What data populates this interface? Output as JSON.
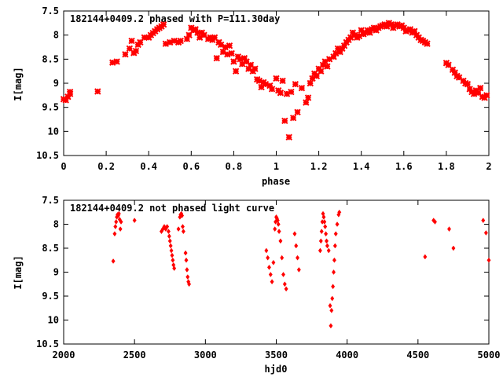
{
  "chart_data": [
    {
      "type": "scatter",
      "title": "182144+0409.2 phased with P=111.30day",
      "xlabel": "phase",
      "ylabel": "I[mag]",
      "xlim": [
        0,
        2
      ],
      "ylim": [
        10.5,
        7.5
      ],
      "y_inverted": true,
      "grid": false,
      "marker": "cross",
      "color": "#ff0000",
      "x_ticks": [
        "0",
        "0.2",
        "0.4",
        "0.6",
        "0.8",
        "1",
        "1.2",
        "1.4",
        "1.6",
        "1.8",
        "2"
      ],
      "y_ticks": [
        "7.5",
        "8",
        "8.5",
        "9",
        "9.5",
        "10",
        "10.5"
      ],
      "points": [
        [
          0.0,
          9.33
        ],
        [
          0.01,
          9.35
        ],
        [
          0.02,
          9.28
        ],
        [
          0.03,
          9.22
        ],
        [
          0.03,
          9.18
        ],
        [
          0.16,
          9.17
        ],
        [
          0.23,
          8.57
        ],
        [
          0.25,
          8.55
        ],
        [
          0.29,
          8.4
        ],
        [
          0.31,
          8.28
        ],
        [
          0.32,
          8.12
        ],
        [
          0.33,
          8.37
        ],
        [
          0.34,
          8.33
        ],
        [
          0.35,
          8.2
        ],
        [
          0.36,
          8.15
        ],
        [
          0.38,
          8.05
        ],
        [
          0.4,
          8.05
        ],
        [
          0.41,
          8.0
        ],
        [
          0.42,
          7.96
        ],
        [
          0.43,
          7.92
        ],
        [
          0.44,
          7.88
        ],
        [
          0.45,
          7.85
        ],
        [
          0.46,
          7.82
        ],
        [
          0.47,
          7.78
        ],
        [
          0.48,
          8.18
        ],
        [
          0.5,
          8.15
        ],
        [
          0.52,
          8.12
        ],
        [
          0.54,
          8.15
        ],
        [
          0.55,
          8.12
        ],
        [
          0.58,
          8.08
        ],
        [
          0.59,
          8.0
        ],
        [
          0.6,
          7.85
        ],
        [
          0.61,
          7.9
        ],
        [
          0.62,
          7.88
        ],
        [
          0.63,
          7.95
        ],
        [
          0.64,
          8.05
        ],
        [
          0.65,
          7.95
        ],
        [
          0.66,
          8.0
        ],
        [
          0.68,
          8.08
        ],
        [
          0.69,
          8.05
        ],
        [
          0.7,
          8.1
        ],
        [
          0.71,
          8.05
        ],
        [
          0.72,
          8.48
        ],
        [
          0.73,
          8.15
        ],
        [
          0.74,
          8.2
        ],
        [
          0.75,
          8.35
        ],
        [
          0.76,
          8.25
        ],
        [
          0.77,
          8.4
        ],
        [
          0.78,
          8.22
        ],
        [
          0.79,
          8.38
        ],
        [
          0.8,
          8.55
        ],
        [
          0.81,
          8.75
        ],
        [
          0.82,
          8.45
        ],
        [
          0.83,
          8.5
        ],
        [
          0.84,
          8.6
        ],
        [
          0.85,
          8.48
        ],
        [
          0.86,
          8.55
        ],
        [
          0.87,
          8.7
        ],
        [
          0.88,
          8.62
        ],
        [
          0.89,
          8.75
        ],
        [
          0.9,
          8.7
        ],
        [
          0.91,
          8.92
        ],
        [
          0.92,
          8.95
        ],
        [
          0.93,
          9.08
        ],
        [
          0.94,
          8.98
        ],
        [
          0.95,
          9.02
        ],
        [
          0.97,
          9.05
        ],
        [
          0.98,
          9.12
        ],
        [
          1.0,
          8.9
        ],
        [
          1.01,
          9.15
        ],
        [
          1.02,
          9.2
        ],
        [
          1.03,
          8.95
        ],
        [
          1.04,
          9.78
        ],
        [
          1.05,
          9.22
        ],
        [
          1.06,
          10.12
        ],
        [
          1.07,
          9.18
        ],
        [
          1.08,
          9.72
        ],
        [
          1.09,
          9.02
        ],
        [
          1.1,
          9.6
        ],
        [
          1.12,
          9.1
        ],
        [
          1.14,
          9.4
        ],
        [
          1.15,
          9.3
        ],
        [
          1.16,
          9.0
        ],
        [
          1.17,
          8.9
        ],
        [
          1.18,
          8.8
        ],
        [
          1.19,
          8.85
        ],
        [
          1.2,
          8.7
        ],
        [
          1.21,
          8.75
        ],
        [
          1.22,
          8.62
        ],
        [
          1.23,
          8.55
        ],
        [
          1.24,
          8.65
        ],
        [
          1.25,
          8.5
        ],
        [
          1.27,
          8.45
        ],
        [
          1.28,
          8.38
        ],
        [
          1.29,
          8.28
        ],
        [
          1.3,
          8.35
        ],
        [
          1.31,
          8.28
        ],
        [
          1.32,
          8.22
        ],
        [
          1.33,
          8.15
        ],
        [
          1.34,
          8.1
        ],
        [
          1.35,
          8.05
        ],
        [
          1.36,
          7.95
        ],
        [
          1.37,
          8.0
        ],
        [
          1.38,
          8.05
        ],
        [
          1.39,
          8.02
        ],
        [
          1.4,
          7.9
        ],
        [
          1.41,
          7.98
        ],
        [
          1.42,
          7.95
        ],
        [
          1.43,
          7.9
        ],
        [
          1.44,
          7.95
        ],
        [
          1.45,
          7.88
        ],
        [
          1.46,
          7.85
        ],
        [
          1.47,
          7.9
        ],
        [
          1.48,
          7.85
        ],
        [
          1.49,
          7.82
        ],
        [
          1.5,
          7.8
        ],
        [
          1.51,
          7.78
        ],
        [
          1.52,
          7.82
        ],
        [
          1.53,
          7.75
        ],
        [
          1.54,
          7.78
        ],
        [
          1.55,
          7.85
        ],
        [
          1.56,
          7.8
        ],
        [
          1.57,
          7.78
        ],
        [
          1.58,
          7.82
        ],
        [
          1.59,
          7.8
        ],
        [
          1.6,
          7.85
        ],
        [
          1.61,
          7.92
        ],
        [
          1.62,
          7.9
        ],
        [
          1.63,
          7.88
        ],
        [
          1.64,
          7.95
        ],
        [
          1.65,
          7.92
        ],
        [
          1.66,
          8.0
        ],
        [
          1.67,
          8.05
        ],
        [
          1.68,
          8.1
        ],
        [
          1.69,
          8.12
        ],
        [
          1.7,
          8.15
        ],
        [
          1.71,
          8.18
        ],
        [
          1.8,
          8.58
        ],
        [
          1.81,
          8.62
        ],
        [
          1.83,
          8.72
        ],
        [
          1.84,
          8.78
        ],
        [
          1.85,
          8.85
        ],
        [
          1.86,
          8.88
        ],
        [
          1.88,
          8.95
        ],
        [
          1.89,
          9.0
        ],
        [
          1.9,
          9.02
        ],
        [
          1.91,
          9.12
        ],
        [
          1.92,
          9.18
        ],
        [
          1.93,
          9.22
        ],
        [
          1.94,
          9.15
        ],
        [
          1.95,
          9.2
        ],
        [
          1.96,
          9.1
        ],
        [
          1.97,
          9.28
        ],
        [
          1.98,
          9.3
        ],
        [
          1.99,
          9.25
        ]
      ]
    },
    {
      "type": "scatter",
      "title": "182144+0409.2 not phased light curve",
      "xlabel": "hjd0",
      "ylabel": "I[mag]",
      "xlim": [
        2000,
        5000
      ],
      "ylim": [
        10.5,
        7.5
      ],
      "y_inverted": true,
      "grid": false,
      "marker": "diamond",
      "color": "#ff0000",
      "x_ticks": [
        "2000",
        "2500",
        "3000",
        "3500",
        "4000",
        "4500",
        "5000"
      ],
      "y_ticks": [
        "7.5",
        "8",
        "8.5",
        "9",
        "9.5",
        "10",
        "10.5"
      ],
      "points": [
        [
          2350,
          8.77
        ],
        [
          2360,
          8.2
        ],
        [
          2365,
          8.05
        ],
        [
          2370,
          7.95
        ],
        [
          2375,
          7.85
        ],
        [
          2380,
          7.8
        ],
        [
          2385,
          7.82
        ],
        [
          2390,
          7.78
        ],
        [
          2395,
          7.9
        ],
        [
          2400,
          8.1
        ],
        [
          2405,
          7.95
        ],
        [
          2500,
          7.92
        ],
        [
          2690,
          8.15
        ],
        [
          2700,
          8.1
        ],
        [
          2710,
          8.05
        ],
        [
          2720,
          8.1
        ],
        [
          2730,
          8.05
        ],
        [
          2740,
          8.15
        ],
        [
          2745,
          8.25
        ],
        [
          2750,
          8.35
        ],
        [
          2755,
          8.45
        ],
        [
          2760,
          8.55
        ],
        [
          2765,
          8.65
        ],
        [
          2770,
          8.75
        ],
        [
          2775,
          8.85
        ],
        [
          2780,
          8.92
        ],
        [
          2810,
          8.1
        ],
        [
          2820,
          7.85
        ],
        [
          2825,
          7.8
        ],
        [
          2830,
          7.78
        ],
        [
          2835,
          7.82
        ],
        [
          2840,
          8.05
        ],
        [
          2845,
          8.15
        ],
        [
          2860,
          8.6
        ],
        [
          2865,
          8.75
        ],
        [
          2870,
          8.95
        ],
        [
          2875,
          9.1
        ],
        [
          2880,
          9.2
        ],
        [
          2885,
          9.25
        ],
        [
          3430,
          8.55
        ],
        [
          3440,
          8.7
        ],
        [
          3450,
          8.9
        ],
        [
          3460,
          9.05
        ],
        [
          3470,
          9.2
        ],
        [
          3480,
          8.8
        ],
        [
          3490,
          8.1
        ],
        [
          3495,
          7.95
        ],
        [
          3500,
          7.85
        ],
        [
          3505,
          7.88
        ],
        [
          3510,
          7.92
        ],
        [
          3515,
          8.0
        ],
        [
          3520,
          8.15
        ],
        [
          3530,
          8.35
        ],
        [
          3540,
          8.7
        ],
        [
          3550,
          9.05
        ],
        [
          3560,
          9.25
        ],
        [
          3570,
          9.35
        ],
        [
          3630,
          8.2
        ],
        [
          3640,
          8.45
        ],
        [
          3650,
          8.7
        ],
        [
          3660,
          8.95
        ],
        [
          3810,
          8.55
        ],
        [
          3815,
          8.35
        ],
        [
          3820,
          8.15
        ],
        [
          3825,
          7.95
        ],
        [
          3830,
          7.78
        ],
        [
          3835,
          7.85
        ],
        [
          3840,
          7.95
        ],
        [
          3845,
          8.05
        ],
        [
          3850,
          8.2
        ],
        [
          3855,
          8.35
        ],
        [
          3860,
          8.45
        ],
        [
          3870,
          8.55
        ],
        [
          3880,
          9.7
        ],
        [
          3885,
          10.12
        ],
        [
          3890,
          9.8
        ],
        [
          3895,
          9.55
        ],
        [
          3900,
          9.3
        ],
        [
          3905,
          9.0
        ],
        [
          3910,
          8.75
        ],
        [
          3915,
          8.45
        ],
        [
          3920,
          8.2
        ],
        [
          3930,
          8.0
        ],
        [
          3940,
          7.8
        ],
        [
          3945,
          7.75
        ],
        [
          4550,
          8.68
        ],
        [
          4610,
          7.92
        ],
        [
          4620,
          7.95
        ],
        [
          4720,
          8.1
        ],
        [
          4750,
          8.5
        ],
        [
          4960,
          7.92
        ],
        [
          4980,
          8.18
        ],
        [
          5000,
          8.75
        ]
      ]
    }
  ]
}
